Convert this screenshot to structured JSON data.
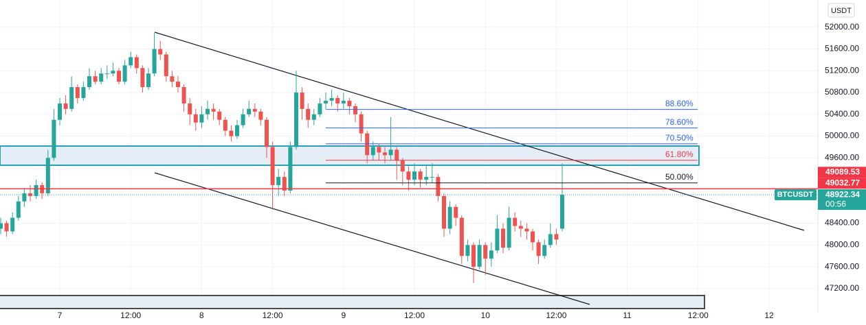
{
  "chart_data": {
    "type": "candlestick",
    "currency": "USDT",
    "ylim": [
      46770,
      52500
    ],
    "yticks": [
      {
        "value": 52000,
        "label": "52000.00"
      },
      {
        "value": 51600,
        "label": "51600.00"
      },
      {
        "value": 51200,
        "label": "51200.00"
      },
      {
        "value": 50800,
        "label": "50800.00"
      },
      {
        "value": 50400,
        "label": "50400.00"
      },
      {
        "value": 50000,
        "label": "50000.00"
      },
      {
        "value": 49600,
        "label": "49600.00"
      },
      {
        "value": 48400,
        "label": "48400.00"
      },
      {
        "value": 48000,
        "label": "48000.00"
      },
      {
        "value": 47600,
        "label": "47600.00"
      },
      {
        "value": 47200,
        "label": "47200.00"
      }
    ],
    "x_labels": [
      "7",
      "12:00",
      "8",
      "12:00",
      "9",
      "12:00",
      "10",
      "12:00",
      "11",
      "12:00",
      "12"
    ],
    "up_color": "#26a69a",
    "down_color": "#ef5350",
    "candles": [
      [
        48300,
        48500,
        48200,
        48400
      ],
      [
        48400,
        48450,
        48150,
        48250
      ],
      [
        48250,
        48600,
        48200,
        48500
      ],
      [
        48500,
        48900,
        48450,
        48800
      ],
      [
        48800,
        49050,
        48700,
        48950
      ],
      [
        48950,
        49100,
        48800,
        48900
      ],
      [
        48900,
        49200,
        48850,
        49100
      ],
      [
        49100,
        49150,
        48850,
        48950
      ],
      [
        48950,
        49750,
        48900,
        49600
      ],
      [
        49600,
        50500,
        49550,
        50300
      ],
      [
        50300,
        50700,
        50200,
        50600
      ],
      [
        50600,
        50750,
        50400,
        50500
      ],
      [
        50500,
        51100,
        50450,
        50900
      ],
      [
        50900,
        50950,
        50600,
        50700
      ],
      [
        50700,
        51000,
        50650,
        50900
      ],
      [
        50900,
        51250,
        50850,
        51100
      ],
      [
        51100,
        51200,
        50950,
        51000
      ],
      [
        51000,
        51250,
        50950,
        51150
      ],
      [
        51150,
        51300,
        51050,
        51150
      ],
      [
        51150,
        51350,
        51100,
        51200
      ],
      [
        51200,
        51250,
        50950,
        51000
      ],
      [
        51000,
        51400,
        50950,
        51300
      ],
      [
        51300,
        51550,
        51250,
        51450
      ],
      [
        51450,
        51500,
        51150,
        51250
      ],
      [
        51250,
        51300,
        50800,
        50900
      ],
      [
        50900,
        51250,
        50850,
        51150
      ],
      [
        51150,
        51900,
        51100,
        51600
      ],
      [
        51600,
        51750,
        51400,
        51500
      ],
      [
        51500,
        51550,
        51000,
        51100
      ],
      [
        51100,
        51200,
        50900,
        51000
      ],
      [
        51000,
        51100,
        50800,
        50900
      ],
      [
        50900,
        50950,
        50450,
        50600
      ],
      [
        50600,
        50700,
        50200,
        50400
      ],
      [
        50400,
        50500,
        50100,
        50250
      ],
      [
        50250,
        50550,
        50150,
        50400
      ],
      [
        50400,
        50650,
        50300,
        50500
      ],
      [
        50500,
        50600,
        50300,
        50450
      ],
      [
        50450,
        50500,
        50200,
        50300
      ],
      [
        50300,
        50350,
        50000,
        50100
      ],
      [
        50100,
        50200,
        49900,
        50000
      ],
      [
        50000,
        50300,
        49950,
        50200
      ],
      [
        50200,
        50500,
        50150,
        50400
      ],
      [
        50400,
        50650,
        50350,
        50500
      ],
      [
        50500,
        50600,
        50350,
        50450
      ],
      [
        50450,
        50500,
        50200,
        50300
      ],
      [
        50300,
        50350,
        49600,
        49800
      ],
      [
        49800,
        49900,
        48650,
        49100
      ],
      [
        49100,
        49400,
        48900,
        49250
      ],
      [
        49250,
        49350,
        48900,
        49000
      ],
      [
        49000,
        49900,
        48950,
        49800
      ],
      [
        49800,
        51200,
        49750,
        50800
      ],
      [
        50800,
        50900,
        50300,
        50500
      ],
      [
        50500,
        50600,
        50150,
        50300
      ],
      [
        50300,
        50500,
        50200,
        50400
      ],
      [
        50400,
        50700,
        50350,
        50600
      ],
      [
        50600,
        50800,
        50500,
        50650
      ],
      [
        50650,
        50850,
        50550,
        50700
      ],
      [
        50700,
        50750,
        50450,
        50600
      ],
      [
        50600,
        50800,
        50500,
        50650
      ],
      [
        50650,
        50700,
        50400,
        50550
      ],
      [
        50550,
        50600,
        50250,
        50400
      ],
      [
        50400,
        50450,
        49900,
        50050
      ],
      [
        50050,
        50100,
        49500,
        49650
      ],
      [
        49650,
        49900,
        49550,
        49800
      ],
      [
        49800,
        49850,
        49550,
        49700
      ],
      [
        49700,
        49800,
        49500,
        49650
      ],
      [
        49650,
        50350,
        49550,
        49750
      ],
      [
        49750,
        49800,
        49200,
        49550
      ],
      [
        49550,
        49600,
        49100,
        49350
      ],
      [
        49350,
        49450,
        49000,
        49200
      ],
      [
        49200,
        49500,
        49100,
        49350
      ],
      [
        49350,
        49400,
        49050,
        49200
      ],
      [
        49200,
        49450,
        49100,
        49250
      ],
      [
        49250,
        49500,
        49150,
        49250
      ],
      [
        49250,
        49300,
        48800,
        48900
      ],
      [
        48900,
        48950,
        48150,
        48300
      ],
      [
        48300,
        48800,
        48200,
        48700
      ],
      [
        48700,
        48750,
        48350,
        48500
      ],
      [
        48500,
        48550,
        47650,
        47800
      ],
      [
        47800,
        48100,
        47700,
        48000
      ],
      [
        48000,
        48050,
        47300,
        47600
      ],
      [
        47600,
        48100,
        47550,
        48000
      ],
      [
        48000,
        48050,
        47450,
        47750
      ],
      [
        47750,
        48050,
        47600,
        47900
      ],
      [
        47900,
        48550,
        47850,
        48300
      ],
      [
        48300,
        48400,
        47850,
        47950
      ],
      [
        47950,
        48700,
        47900,
        48500
      ],
      [
        48500,
        48600,
        48250,
        48350
      ],
      [
        48350,
        48450,
        48150,
        48300
      ],
      [
        48300,
        48400,
        48100,
        48250
      ],
      [
        48250,
        48300,
        47900,
        48050
      ],
      [
        48050,
        48100,
        47650,
        47800
      ],
      [
        47800,
        48100,
        47750,
        48000
      ],
      [
        48000,
        48400,
        47950,
        48200
      ],
      [
        48200,
        48300,
        48000,
        48100
      ],
      [
        48300,
        49500,
        48250,
        48922.34
      ]
    ],
    "fib": [
      {
        "label": "88.60%",
        "price": 50489,
        "color": "#2962ff"
      },
      {
        "label": "78.60%",
        "price": 50149,
        "color": "#2962ff"
      },
      {
        "label": "70.50%",
        "price": 49859,
        "color": "#2962ff"
      },
      {
        "label": "61.80%",
        "price": 49557,
        "color": "#f23645"
      },
      {
        "label": "50.00%",
        "price": 49141,
        "color": "#131722"
      }
    ],
    "price_labels": [
      {
        "value": 49089.53,
        "label": "49089.53"
      },
      {
        "value": 49032.77,
        "label": "49032.77"
      }
    ],
    "current": {
      "symbol": "BTCUSDT",
      "value": 48922.34,
      "label": "48922.34",
      "countdown": "00:56"
    }
  }
}
